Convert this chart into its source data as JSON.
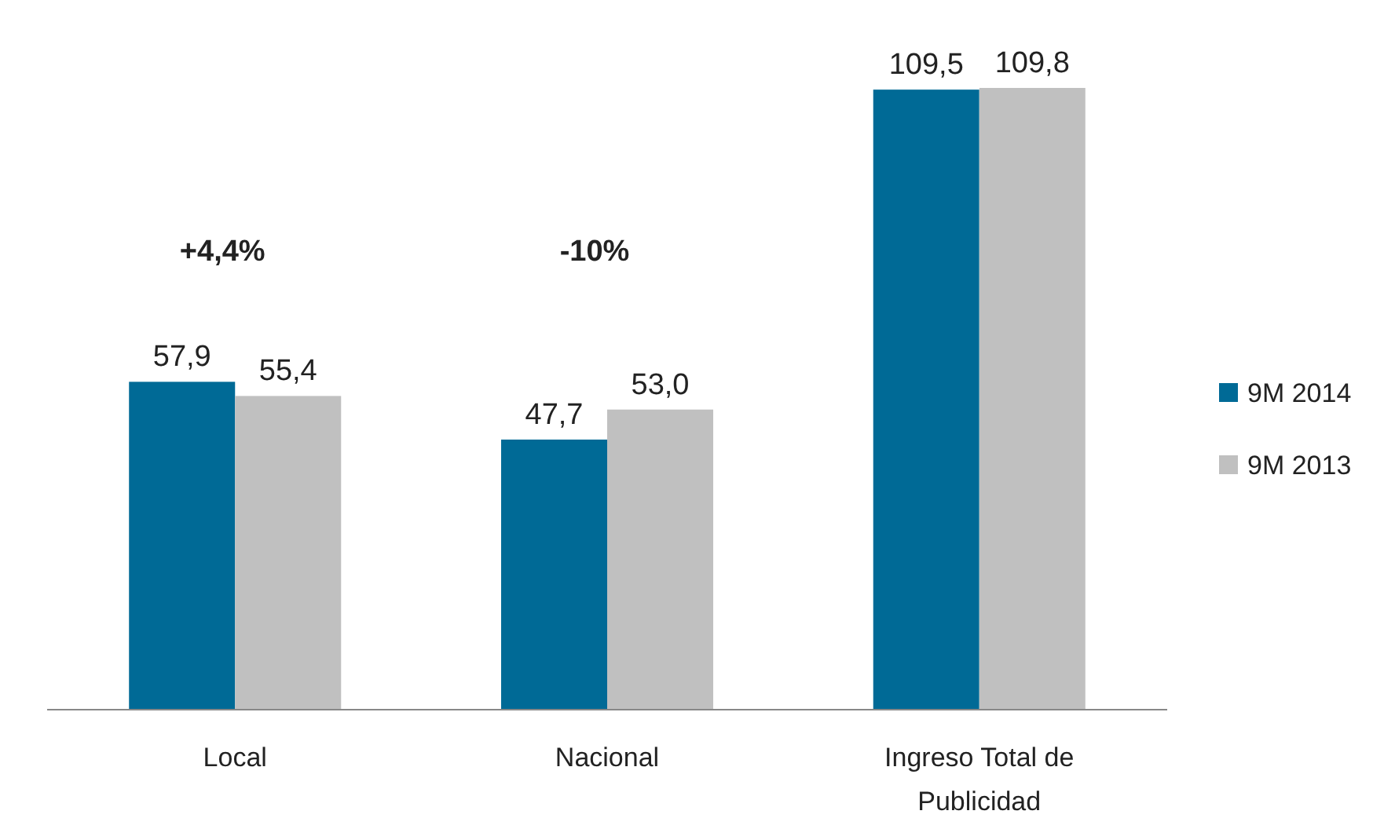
{
  "chart_data": {
    "type": "bar",
    "categories": [
      "Local",
      "Nacional",
      "Ingreso Total de Publicidad"
    ],
    "series": [
      {
        "name": "9M 2014",
        "color": "#006a96",
        "values": [
          57.9,
          47.7,
          109.5
        ],
        "value_labels": [
          "57,9",
          "47,7",
          "109,5"
        ]
      },
      {
        "name": "9M 2013",
        "color": "#c0c0c0",
        "values": [
          55.4,
          53.0,
          109.8
        ],
        "value_labels": [
          "55,4",
          "53,0",
          "109,8"
        ]
      }
    ],
    "annotations": [
      "+4,4%",
      "-10%"
    ],
    "legend": "right",
    "grid": false
  }
}
